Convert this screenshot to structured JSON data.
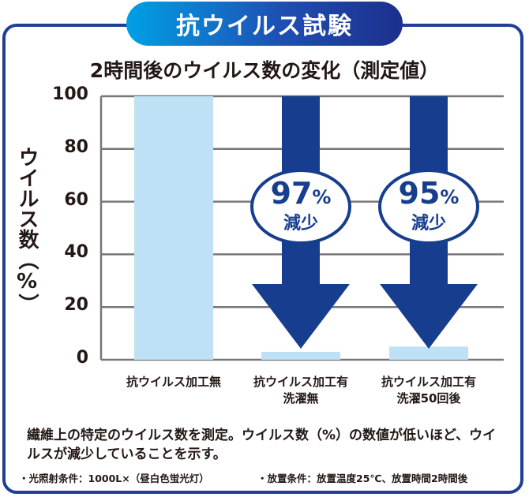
{
  "badge_title": "抗ウイルス試験",
  "colors": {
    "bar": "#bfe1f6",
    "arrow": "#173e8e",
    "grid": "#777777",
    "frame": "#1f3f96"
  },
  "chart_data": {
    "type": "bar",
    "title": "2時間後のウイルス数の変化（測定値）",
    "ylabel": "ウイルス数（%）",
    "ylim": [
      0,
      100
    ],
    "yticks": [
      0,
      20,
      40,
      60,
      80,
      100
    ],
    "categories": [
      [
        "抗ウイルス加工無"
      ],
      [
        "抗ウイルス加工有",
        "洗濯無"
      ],
      [
        "抗ウイルス加工有",
        "洗濯50回後"
      ]
    ],
    "values": [
      100,
      3,
      5
    ],
    "annotations": [
      {
        "category_index": 1,
        "percent": "97",
        "unit": "%",
        "text": "減少"
      },
      {
        "category_index": 2,
        "percent": "95",
        "unit": "%",
        "text": "減少"
      }
    ]
  },
  "note": "繊維上の特定のウイルス数を測定。ウイルス数（%）の数値が低いほど、ウイルスが減少していることを示す。",
  "conditions": [
    "・光照射条件：1000L×（昼白色蛍光灯）",
    "・放置条件：放置温度25℃、放置時間2時間後"
  ]
}
